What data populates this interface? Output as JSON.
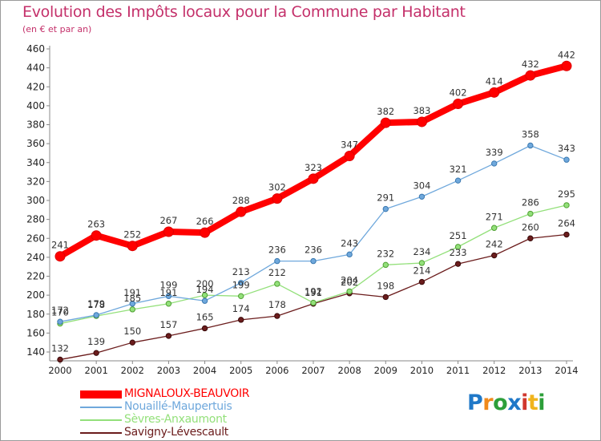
{
  "chart_data": {
    "type": "line",
    "title": "Evolution des Impôts locaux pour la Commune par Habitant",
    "subtitle": "(en € et par an)",
    "xlabel": "",
    "ylabel": "",
    "x": [
      "2000",
      "2001",
      "2002",
      "2003",
      "2004",
      "2005",
      "2006",
      "2007",
      "2008",
      "2009",
      "2010",
      "2011",
      "2012",
      "2013",
      "2014"
    ],
    "ylim": [
      140,
      460
    ],
    "yticks": [
      140,
      160,
      180,
      200,
      220,
      240,
      260,
      280,
      300,
      320,
      340,
      360,
      380,
      400,
      420,
      440,
      460
    ],
    "grid": false,
    "legend_position": "bottom-left",
    "series": [
      {
        "name": "MIGNALOUX-BEAUVOIR",
        "color": "#ff0000",
        "values": [
          241,
          263,
          252,
          267,
          266,
          288,
          302,
          323,
          347,
          382,
          383,
          402,
          414,
          432,
          442
        ]
      },
      {
        "name": "Nouaillé-Maupertuis",
        "color": "#6fa8dc",
        "values": [
          172,
          179,
          191,
          199,
          194,
          213,
          236,
          236,
          243,
          291,
          304,
          321,
          339,
          358,
          343
        ]
      },
      {
        "name": "Sèvres-Anxaumont",
        "color": "#93e07a",
        "values": [
          170,
          178,
          185,
          191,
          200,
          199,
          212,
          192,
          204,
          232,
          234,
          251,
          271,
          286,
          295
        ]
      },
      {
        "name": "Savigny-Lévescault",
        "color": "#6b1c1c",
        "values": [
          132,
          139,
          150,
          157,
          165,
          174,
          178,
          191,
          202,
          198,
          214,
          233,
          242,
          260,
          264
        ]
      }
    ]
  },
  "logo": {
    "text": "Proxiti"
  }
}
